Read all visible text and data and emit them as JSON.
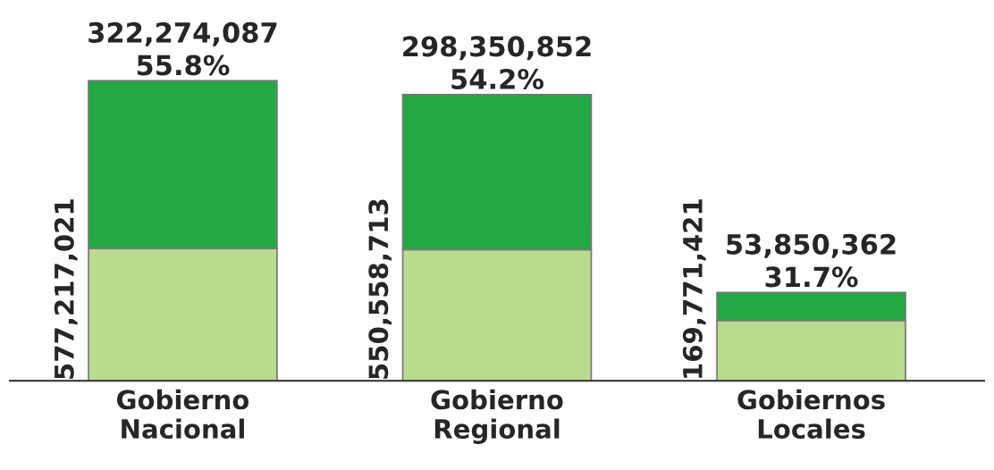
{
  "chart_data": {
    "type": "bar",
    "stacked": true,
    "categories": [
      "Gobierno\nNacional",
      "Gobierno\nRegional",
      "Gobiernos\nLocales"
    ],
    "series": [
      {
        "color": "#b9dc8e",
        "values": [
          254942934,
          252207861,
          115921059
        ]
      },
      {
        "color": "#23a844",
        "values": [
          322274087,
          298350852,
          53850362
        ],
        "value_labels": [
          "322,274,087\n55.8%",
          "298,350,852\n54.2%",
          "53,850,362\n31.7%"
        ]
      }
    ],
    "totals": [
      "577,217,021",
      "550,558,713",
      "169,771,421"
    ]
  }
}
